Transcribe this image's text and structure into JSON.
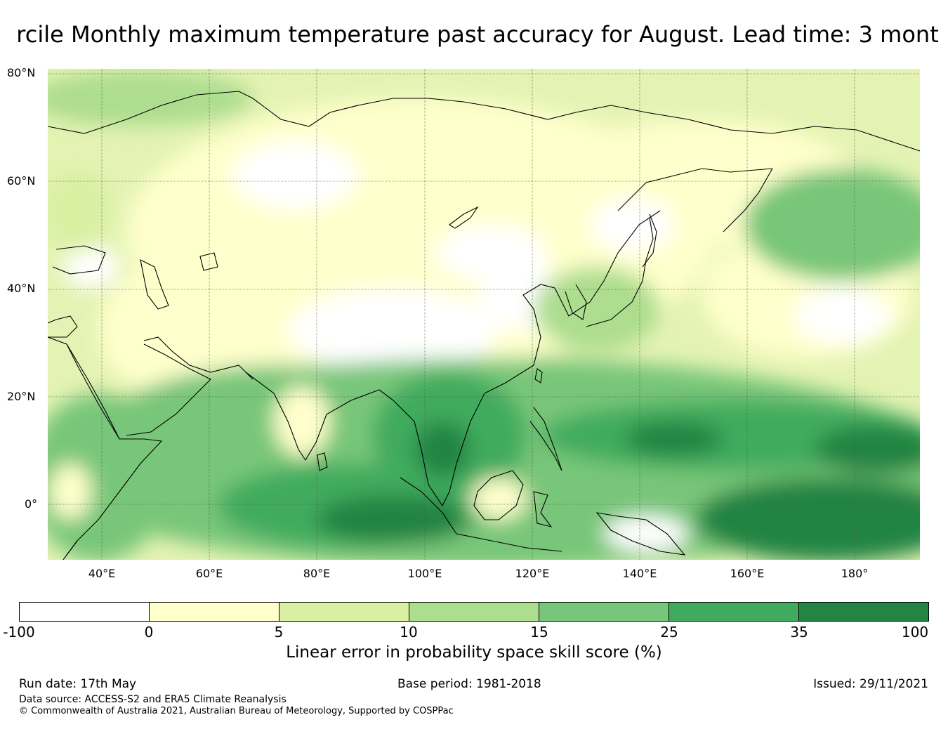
{
  "title": "rcile Monthly maximum temperature past accuracy for August. Lead time: 3 mont",
  "map": {
    "latitude_labels": [
      "80°N",
      "60°N",
      "40°N",
      "20°N",
      "0°"
    ],
    "longitude_labels": [
      "40°E",
      "60°E",
      "80°E",
      "100°E",
      "120°E",
      "140°E",
      "160°E",
      "180°"
    ],
    "extent": {
      "lon_min": 30,
      "lon_max": 192,
      "lat_min": -10,
      "lat_max": 80
    }
  },
  "legend": {
    "label": "Linear error in probability space skill score (%)",
    "ticks": [
      "-100",
      "0",
      "5",
      "10",
      "15",
      "25",
      "35",
      "100"
    ],
    "colors": [
      "#ffffff",
      "#ffffcc",
      "#d9f0a3",
      "#addd8e",
      "#78c679",
      "#41ab5d",
      "#238443"
    ]
  },
  "footer": {
    "run_date": "Run date: 17th May",
    "base_period": "Base period: 1981-2018",
    "issued": "Issued: 29/11/2021",
    "data_source": "Data source: ACCESS-S2 and ERA5 Climate Reanalysis",
    "copyright": "© Commonwealth of Australia 2021, Australian Bureau of Meteorology, Supported by COSPPac"
  }
}
